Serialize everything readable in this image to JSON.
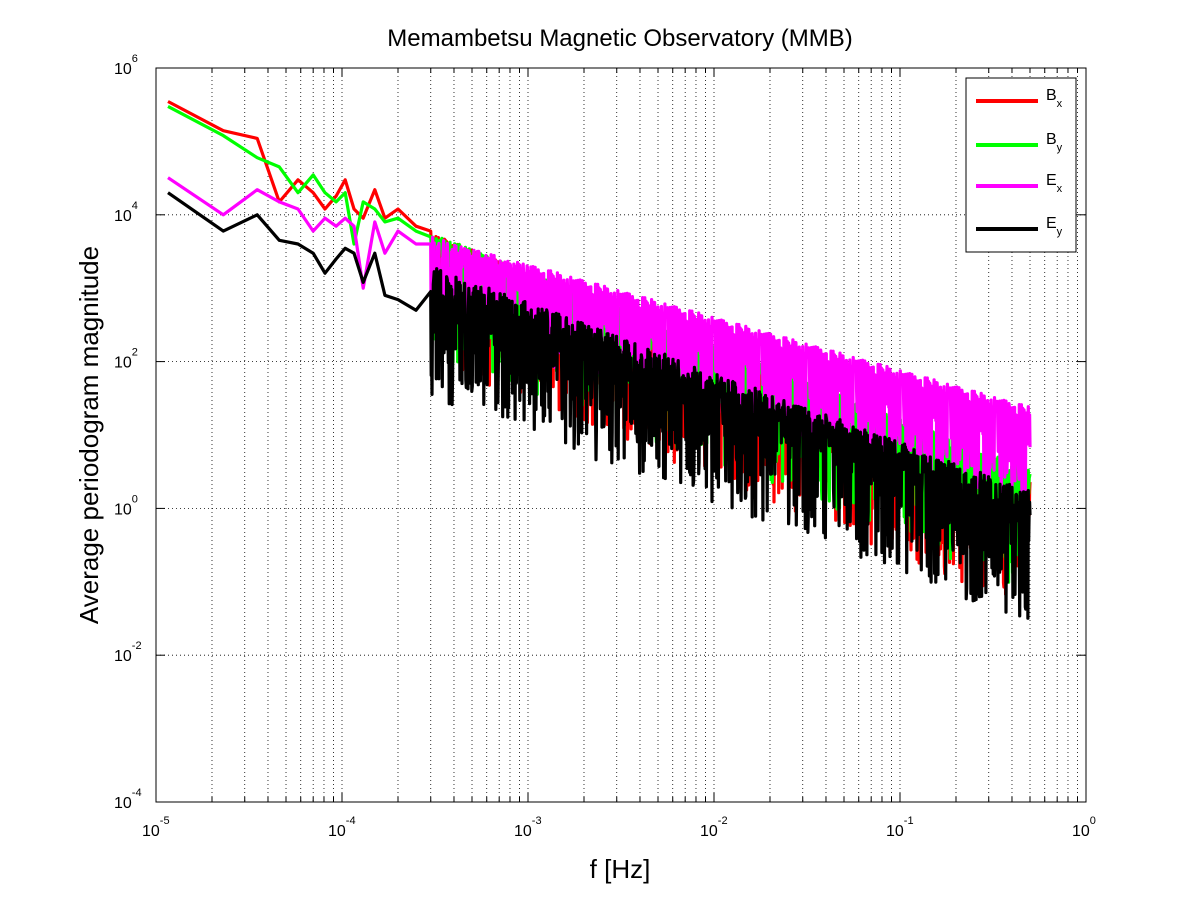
{
  "chart_data": {
    "type": "line",
    "title": "Memambetsu Magnetic Observatory (MMB)",
    "xlabel": "f [Hz]",
    "ylabel": "Average periodogram magnitude",
    "xscale": "log",
    "yscale": "log",
    "xlim": [
      1e-05,
      1
    ],
    "ylim": [
      0.0001,
      1000000.0
    ],
    "grid": true,
    "legend_position": "top-right",
    "x_ticks": [
      {
        "base": "10",
        "exp": "-5"
      },
      {
        "base": "10",
        "exp": "-4"
      },
      {
        "base": "10",
        "exp": "-3"
      },
      {
        "base": "10",
        "exp": "-2"
      },
      {
        "base": "10",
        "exp": "-1"
      },
      {
        "base": "10",
        "exp": "0"
      }
    ],
    "y_ticks": [
      {
        "base": "10",
        "exp": "-4"
      },
      {
        "base": "10",
        "exp": "-2"
      },
      {
        "base": "10",
        "exp": "0"
      },
      {
        "base": "10",
        "exp": "2"
      },
      {
        "base": "10",
        "exp": "4"
      },
      {
        "base": "10",
        "exp": "6"
      }
    ],
    "series": [
      {
        "name": "Bx",
        "label_main": "B",
        "label_sub": "x",
        "color": "#ff0000",
        "x": [
          1.16e-05,
          2.3e-05,
          3.5e-05,
          4.6e-05,
          5.8e-05,
          7e-05,
          8.1e-05,
          9.3e-05,
          0.000104,
          0.000116,
          0.00013,
          0.00015,
          0.00017,
          0.0002,
          0.00025,
          0.0003
        ],
        "y": [
          350000,
          140000,
          110000,
          15000,
          30000,
          20000,
          12000,
          18000,
          30000,
          12000,
          9000,
          22000,
          9000,
          12000,
          7000,
          6000
        ],
        "noise_trend": {
          "start_log_y": 3.6,
          "slope": -1.05,
          "spread_low": 1.6,
          "spread_high": 0.15,
          "end_x": 0.5
        }
      },
      {
        "name": "By",
        "label_main": "B",
        "label_sub": "y",
        "color": "#00ff00",
        "x": [
          1.16e-05,
          2.3e-05,
          3.5e-05,
          4.6e-05,
          5.8e-05,
          7e-05,
          8.1e-05,
          9.3e-05,
          0.000104,
          0.000116,
          0.00013,
          0.00015,
          0.00017,
          0.0002,
          0.00025,
          0.0003
        ],
        "y": [
          300000,
          120000,
          60000,
          45000,
          20000,
          35000,
          20000,
          15000,
          20000,
          4000,
          15000,
          12000,
          8000,
          9000,
          6000,
          5000
        ],
        "noise_trend": {
          "start_log_y": 3.6,
          "slope": -1.0,
          "spread_low": 1.5,
          "spread_high": 0.15,
          "end_x": 0.5
        }
      },
      {
        "name": "Ex",
        "label_main": "E",
        "label_sub": "x",
        "color": "#ff00ff",
        "x": [
          1.16e-05,
          2.3e-05,
          3.5e-05,
          4.6e-05,
          5.8e-05,
          7e-05,
          8.1e-05,
          9.3e-05,
          0.000104,
          0.000116,
          0.00013,
          0.00015,
          0.00017,
          0.0002,
          0.00025,
          0.0003
        ],
        "y": [
          32000,
          10000,
          22000,
          15000,
          12000,
          6000,
          9000,
          7000,
          9000,
          7000,
          1000,
          8000,
          3000,
          6000,
          4000,
          4000
        ],
        "noise_trend": {
          "start_log_y": 3.5,
          "slope": -0.72,
          "spread_low": 1.1,
          "spread_high": 0.2,
          "end_x": 0.5
        }
      },
      {
        "name": "Ey",
        "label_main": "E",
        "label_sub": "y",
        "color": "#000000",
        "x": [
          1.16e-05,
          2.3e-05,
          3.5e-05,
          4.6e-05,
          5.8e-05,
          7e-05,
          8.1e-05,
          9.3e-05,
          0.000104,
          0.000116,
          0.00013,
          0.00015,
          0.00017,
          0.0002,
          0.00025,
          0.0003
        ],
        "y": [
          20000,
          6000,
          10000,
          4500,
          4000,
          3000,
          1600,
          2500,
          3500,
          3000,
          1200,
          3000,
          800,
          700,
          500,
          900
        ],
        "noise_trend": {
          "start_log_y": 2.95,
          "slope": -0.95,
          "spread_low": 1.45,
          "spread_high": 0.35,
          "end_x": 0.5
        }
      }
    ]
  }
}
